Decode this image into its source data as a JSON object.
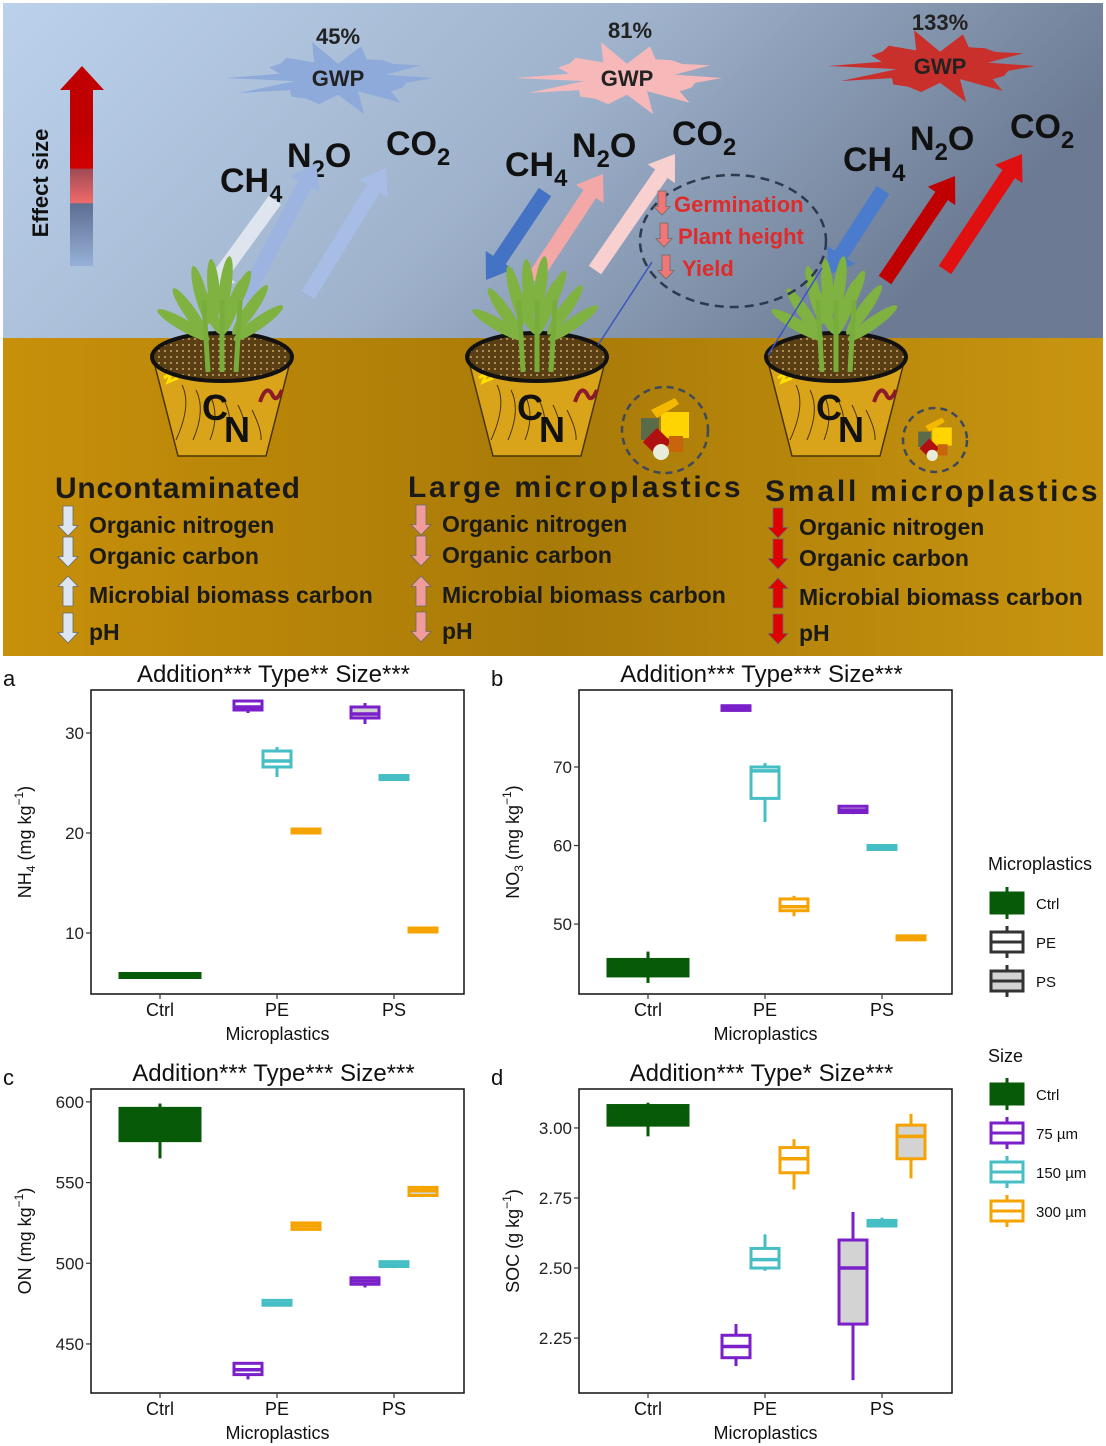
{
  "graphic": {
    "effect_size_label": "Effect size",
    "gases": [
      {
        "base": "CH",
        "sub": "4"
      },
      {
        "base": "N",
        "sub": "2",
        "post": "O"
      },
      {
        "base": "CO",
        "sub": "2"
      }
    ],
    "gwp_label": "GWP",
    "scenarios": [
      {
        "title": "Uncontaminated",
        "gwp_percent": "45%",
        "gwp_color": "#8eaadb",
        "arrow_colors": {
          "CH4": "#dfe5ee",
          "N2O": "#9db3e0",
          "CO2": "#a8bde6"
        },
        "arrow_directions": {
          "CH4": "down",
          "N2O": "up",
          "CO2": "up"
        },
        "soil_arrow_color": "#dce6f2",
        "soil_items": [
          {
            "label": "Organic nitrogen",
            "direction": "down"
          },
          {
            "label": "Organic carbon",
            "direction": "down"
          },
          {
            "label": "Microbial biomass carbon",
            "direction": "up"
          },
          {
            "label": "pH",
            "direction": "down"
          }
        ]
      },
      {
        "title": "Large microplastics",
        "gwp_percent": "81%",
        "gwp_color": "#f6b8b8",
        "arrow_colors": {
          "CH4": "#4472c4",
          "N2O": "#f4a7a7",
          "CO2": "#f9d0d0"
        },
        "arrow_directions": {
          "CH4": "down",
          "N2O": "up",
          "CO2": "up"
        },
        "soil_arrow_color": "#f29b9b",
        "soil_items": [
          {
            "label": "Organic nitrogen",
            "direction": "down"
          },
          {
            "label": "Organic carbon",
            "direction": "down"
          },
          {
            "label": "Microbial biomass carbon",
            "direction": "up"
          },
          {
            "label": "pH",
            "direction": "down"
          }
        ]
      },
      {
        "title": "Small microplastics",
        "gwp_percent": "133%",
        "gwp_color": "#c9302c",
        "arrow_colors": {
          "CH4": "#4a7bcc",
          "N2O": "#c00000",
          "CO2": "#e01010"
        },
        "arrow_directions": {
          "CH4": "down",
          "N2O": "up",
          "CO2": "up"
        },
        "soil_arrow_color": "#e00000",
        "soil_items": [
          {
            "label": "Organic nitrogen",
            "direction": "down"
          },
          {
            "label": "Organic carbon",
            "direction": "down"
          },
          {
            "label": "Microbial biomass carbon",
            "direction": "up"
          },
          {
            "label": "pH",
            "direction": "down"
          }
        ]
      }
    ],
    "plant_effects": {
      "color": "#e02b2b",
      "items": [
        {
          "label": "Germination",
          "direction": "down"
        },
        {
          "label": "Plant height",
          "direction": "down"
        },
        {
          "label": "Yield",
          "direction": "down"
        }
      ]
    },
    "pot_letters": [
      "C",
      "N"
    ]
  },
  "colors": {
    "Ctrl": "#075a07",
    "75 µm": "#7a1fc9",
    "150 µm": "#45bec5",
    "300 µm": "#f5a300",
    "PE_fill": "#ffffff",
    "PS_fill": "#d3d3d3"
  },
  "legend": {
    "microplastics": {
      "title": "Microplastics",
      "items": [
        "Ctrl",
        "PE",
        "PS"
      ]
    },
    "size": {
      "title": "Size",
      "items": [
        "Ctrl",
        "75 µm",
        "150 µm",
        "300 µm"
      ]
    }
  },
  "chart_data": [
    {
      "panel": "a",
      "type": "box",
      "title": "Addition*** Type** Size***",
      "xlabel": "Microplastics",
      "ylabel": {
        "pre": "NH",
        "sub": "4",
        "mid": " (mg kg",
        "sup": "−1",
        "post": ")"
      },
      "categories": [
        "Ctrl",
        "PE",
        "PS"
      ],
      "ylim": [
        3.9,
        34.3
      ],
      "yticks": [
        10,
        20,
        30
      ],
      "yticklabels": [
        "10",
        "20",
        "30"
      ],
      "boxes": [
        {
          "category": "Ctrl",
          "size": "Ctrl",
          "min": 5.6,
          "q1": 5.6,
          "median": 5.7,
          "q3": 5.9,
          "max": 5.9
        },
        {
          "category": "PE",
          "size": "75 µm",
          "min": 32.0,
          "q1": 32.3,
          "median": 32.6,
          "q3": 33.2,
          "max": 33.3
        },
        {
          "category": "PE",
          "size": "150 µm",
          "min": 25.6,
          "q1": 26.6,
          "median": 27.2,
          "q3": 28.2,
          "max": 28.6
        },
        {
          "category": "PE",
          "size": "300 µm",
          "min": 19.9,
          "q1": 20.0,
          "median": 20.2,
          "q3": 20.4,
          "max": 20.5
        },
        {
          "category": "PS",
          "size": "75 µm",
          "min": 30.9,
          "q1": 31.5,
          "median": 31.9,
          "q3": 32.6,
          "max": 33.0
        },
        {
          "category": "PS",
          "size": "150 µm",
          "min": 25.3,
          "q1": 25.4,
          "median": 25.5,
          "q3": 25.7,
          "max": 25.8
        },
        {
          "category": "PS",
          "size": "300 µm",
          "min": 10.1,
          "q1": 10.2,
          "median": 10.3,
          "q3": 10.4,
          "max": 10.5
        }
      ]
    },
    {
      "panel": "b",
      "type": "box",
      "title": "Addition*** Type*** Size***",
      "xlabel": "Microplastics",
      "ylabel": {
        "pre": "NO",
        "sub": "3",
        "mid": " (mg kg",
        "sup": "−1",
        "post": ")"
      },
      "categories": [
        "Ctrl",
        "PE",
        "PS"
      ],
      "ylim": [
        41.1,
        79.8
      ],
      "yticks": [
        50,
        60,
        70
      ],
      "yticklabels": [
        "50",
        "60",
        "70"
      ],
      "boxes": [
        {
          "category": "Ctrl",
          "size": "Ctrl",
          "min": 42.5,
          "q1": 43.4,
          "median": 44.5,
          "q3": 45.5,
          "max": 46.5
        },
        {
          "category": "PE",
          "size": "75 µm",
          "min": 77.1,
          "q1": 77.2,
          "median": 77.5,
          "q3": 77.8,
          "max": 77.9
        },
        {
          "category": "PE",
          "size": "150 µm",
          "min": 63.0,
          "q1": 66.0,
          "median": 69.5,
          "q3": 70.0,
          "max": 70.5
        },
        {
          "category": "PE",
          "size": "300 µm",
          "min": 51.0,
          "q1": 51.7,
          "median": 52.2,
          "q3": 53.2,
          "max": 53.6
        },
        {
          "category": "PS",
          "size": "75 µm",
          "min": 64.0,
          "q1": 64.2,
          "median": 64.5,
          "q3": 65.0,
          "max": 65.1
        },
        {
          "category": "PS",
          "size": "150 µm",
          "min": 59.4,
          "q1": 59.5,
          "median": 59.7,
          "q3": 60.0,
          "max": 60.1
        },
        {
          "category": "PS",
          "size": "300 µm",
          "min": 48.1,
          "q1": 48.1,
          "median": 48.2,
          "q3": 48.4,
          "max": 48.4
        }
      ]
    },
    {
      "panel": "c",
      "type": "box",
      "title": "Addition*** Type*** Size***",
      "xlabel": "Microplastics",
      "ylabel": {
        "pre": "ON",
        "sub": "",
        "mid": " (mg kg",
        "sup": "−1",
        "post": ")"
      },
      "categories": [
        "Ctrl",
        "PE",
        "PS"
      ],
      "ylim": [
        419.6,
        608
      ],
      "yticks": [
        450,
        500,
        550,
        600
      ],
      "yticklabels": [
        "450",
        "500",
        "550",
        "600"
      ],
      "boxes": [
        {
          "category": "Ctrl",
          "size": "Ctrl",
          "min": 565,
          "q1": 576,
          "median": 585,
          "q3": 596,
          "max": 599
        },
        {
          "category": "PE",
          "size": "75 µm",
          "min": 428,
          "q1": 431,
          "median": 434,
          "q3": 438,
          "max": 438
        },
        {
          "category": "PE",
          "size": "150 µm",
          "min": 474,
          "q1": 474,
          "median": 475,
          "q3": 477,
          "max": 477
        },
        {
          "category": "PE",
          "size": "300 µm",
          "min": 521,
          "q1": 521,
          "median": 523,
          "q3": 525,
          "max": 525
        },
        {
          "category": "PS",
          "size": "75 µm",
          "min": 485,
          "q1": 487,
          "median": 489,
          "q3": 491,
          "max": 491
        },
        {
          "category": "PS",
          "size": "150 µm",
          "min": 497,
          "q1": 498,
          "median": 499,
          "q3": 501,
          "max": 501
        },
        {
          "category": "PS",
          "size": "300 µm",
          "min": 541,
          "q1": 542,
          "median": 545,
          "q3": 547,
          "max": 548
        }
      ]
    },
    {
      "panel": "d",
      "type": "box",
      "title": "Addition*** Type* Size***",
      "xlabel": "Microplastics",
      "ylabel": {
        "pre": "SOC",
        "sub": "",
        "mid": " (g kg",
        "sup": "−1",
        "post": ")"
      },
      "categories": [
        "Ctrl",
        "PE",
        "PS"
      ],
      "ylim": [
        2.054,
        3.139
      ],
      "yticks": [
        2.25,
        2.5,
        2.75,
        3.0
      ],
      "yticklabels": [
        "2.25",
        "2.50",
        "2.75",
        "3.00"
      ],
      "boxes": [
        {
          "category": "Ctrl",
          "size": "Ctrl",
          "min": 2.97,
          "q1": 3.01,
          "median": 3.04,
          "q3": 3.08,
          "max": 3.09
        },
        {
          "category": "PE",
          "size": "75 µm",
          "min": 2.15,
          "q1": 2.18,
          "median": 2.22,
          "q3": 2.26,
          "max": 2.3
        },
        {
          "category": "PE",
          "size": "150 µm",
          "min": 2.49,
          "q1": 2.5,
          "median": 2.53,
          "q3": 2.57,
          "max": 2.62
        },
        {
          "category": "PE",
          "size": "300 µm",
          "min": 2.78,
          "q1": 2.84,
          "median": 2.89,
          "q3": 2.93,
          "max": 2.96
        },
        {
          "category": "PS",
          "size": "75 µm",
          "min": 2.1,
          "q1": 2.3,
          "median": 2.5,
          "q3": 2.6,
          "max": 2.7
        },
        {
          "category": "PS",
          "size": "150 µm",
          "min": 2.65,
          "q1": 2.65,
          "median": 2.66,
          "q3": 2.67,
          "max": 2.68
        },
        {
          "category": "PS",
          "size": "300 µm",
          "min": 2.82,
          "q1": 2.89,
          "median": 2.97,
          "q3": 3.01,
          "max": 3.05
        }
      ]
    }
  ]
}
